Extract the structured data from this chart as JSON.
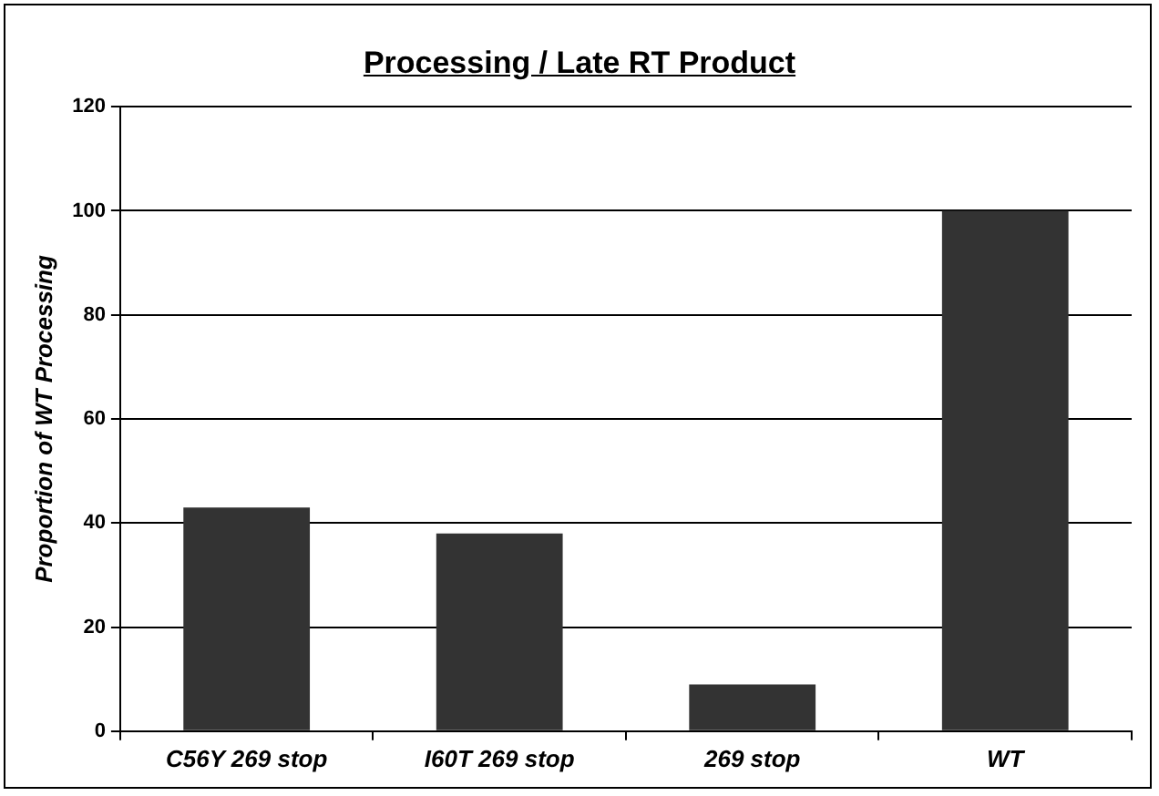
{
  "chart_data": {
    "type": "bar",
    "title": "Processing / Late RT Product",
    "ylabel": "Proportion of WT Processing",
    "categories": [
      "C56Y 269 stop",
      "I60T 269 stop",
      "269 stop",
      "WT"
    ],
    "values": [
      43,
      38,
      9,
      100
    ],
    "color": "#333333",
    "ylim": [
      0,
      120
    ],
    "yticks": [
      0,
      20,
      40,
      60,
      80,
      100,
      120
    ],
    "grid": "y",
    "legend": false
  }
}
